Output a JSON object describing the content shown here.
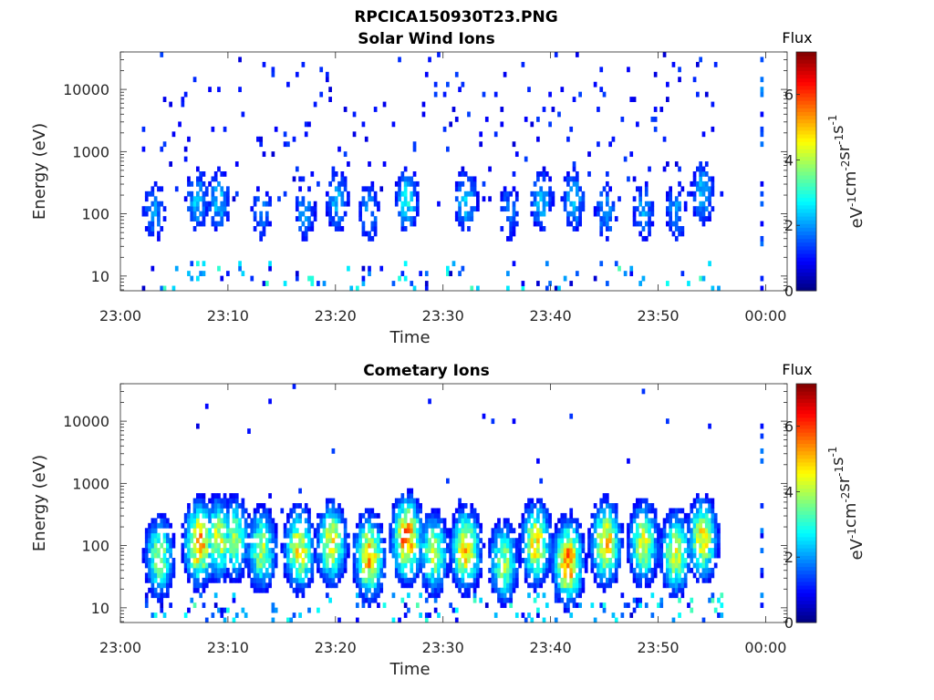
{
  "figure_title": "RPCICA150930T23.PNG",
  "colors": {
    "axis": "#262626",
    "sparse_point": "#0000cc",
    "colormap": [
      "#00007f",
      "#0000ff",
      "#007fff",
      "#00ffff",
      "#7fff7f",
      "#ffff00",
      "#ff7f00",
      "#ff0000",
      "#7f0000"
    ]
  },
  "chart_data": [
    {
      "type": "heatmap",
      "title": "Solar Wind Ions",
      "xlabel": "Time",
      "ylabel": "Energy (eV)",
      "x_ticks": [
        "23:00",
        "23:10",
        "23:20",
        "23:30",
        "23:40",
        "23:50",
        "00:00"
      ],
      "x_range_minutes": [
        0,
        62
      ],
      "y_scale": "log",
      "y_range": [
        5.8,
        40000
      ],
      "y_ticks": [
        10,
        100,
        1000,
        10000
      ],
      "y_tick_labels": [
        "10",
        "100",
        "1000",
        "10000"
      ],
      "colorbar": {
        "title": "Flux",
        "label": "eV-1cm-2sr-1s-1",
        "label_base": [
          "eV",
          "cm",
          "sr",
          "s"
        ],
        "label_exp": [
          "-1",
          "-2",
          "-1",
          "-1"
        ],
        "range": [
          0,
          7.3
        ],
        "ticks": [
          0,
          2,
          4,
          6
        ],
        "tick_labels": [
          "0",
          "2",
          "4",
          "6"
        ]
      },
      "data_extent_minutes": [
        2,
        56
      ],
      "isolated_sample_minute": 59.5,
      "bursts": [
        {
          "t": 3,
          "e": 100,
          "flux": 2.0
        },
        {
          "t": 7,
          "e": 150,
          "flux": 2.3
        },
        {
          "t": 9,
          "e": 150,
          "flux": 2.3
        },
        {
          "t": 13,
          "e": 100,
          "flux": 1.8
        },
        {
          "t": 17,
          "e": 100,
          "flux": 2.0
        },
        {
          "t": 20,
          "e": 150,
          "flux": 2.2
        },
        {
          "t": 23,
          "e": 100,
          "flux": 2.0
        },
        {
          "t": 26.5,
          "e": 150,
          "flux": 2.6
        },
        {
          "t": 32,
          "e": 150,
          "flux": 2.4
        },
        {
          "t": 36,
          "e": 100,
          "flux": 1.8
        },
        {
          "t": 39,
          "e": 150,
          "flux": 2.3
        },
        {
          "t": 42,
          "e": 150,
          "flux": 2.3
        },
        {
          "t": 45,
          "e": 100,
          "flux": 2.0
        },
        {
          "t": 48.5,
          "e": 100,
          "flux": 2.0
        },
        {
          "t": 51.5,
          "e": 100,
          "flux": 2.0
        },
        {
          "t": 54,
          "e": 200,
          "flux": 2.3
        }
      ]
    },
    {
      "type": "heatmap",
      "title": "Cometary Ions",
      "xlabel": "Time",
      "ylabel": "Energy (eV)",
      "x_ticks": [
        "23:00",
        "23:10",
        "23:20",
        "23:30",
        "23:40",
        "23:50",
        "00:00"
      ],
      "x_range_minutes": [
        0,
        62
      ],
      "y_scale": "log",
      "y_range": [
        5.8,
        40000
      ],
      "y_ticks": [
        10,
        100,
        1000,
        10000
      ],
      "y_tick_labels": [
        "10",
        "100",
        "1000",
        "10000"
      ],
      "colorbar": {
        "title": "Flux",
        "label": "eV-1cm-2sr-1s-1",
        "label_base": [
          "eV",
          "cm",
          "sr",
          "s"
        ],
        "label_exp": [
          "-1",
          "-2",
          "-1",
          "-1"
        ],
        "range": [
          0,
          7.3
        ],
        "ticks": [
          0,
          2,
          4,
          6
        ],
        "tick_labels": [
          "0",
          "2",
          "4",
          "6"
        ]
      },
      "data_extent_minutes": [
        2,
        56
      ],
      "isolated_sample_minute": 59.5,
      "bursts": [
        {
          "t": 3.5,
          "e": 60,
          "flux": 3.8
        },
        {
          "t": 7.2,
          "e": 100,
          "flux": 5.2
        },
        {
          "t": 9,
          "e": 120,
          "flux": 4.3
        },
        {
          "t": 10.5,
          "e": 120,
          "flux": 3.8
        },
        {
          "t": 13,
          "e": 80,
          "flux": 4.0
        },
        {
          "t": 16.5,
          "e": 80,
          "flux": 4.6
        },
        {
          "t": 19.5,
          "e": 100,
          "flux": 4.4
        },
        {
          "t": 23,
          "e": 60,
          "flux": 5.0
        },
        {
          "t": 26.5,
          "e": 120,
          "flux": 5.6
        },
        {
          "t": 29,
          "e": 70,
          "flux": 4.0
        },
        {
          "t": 32,
          "e": 80,
          "flux": 4.8
        },
        {
          "t": 35.5,
          "e": 50,
          "flux": 3.8
        },
        {
          "t": 38.5,
          "e": 100,
          "flux": 4.6
        },
        {
          "t": 41.5,
          "e": 50,
          "flux": 5.4
        },
        {
          "t": 45,
          "e": 100,
          "flux": 4.8
        },
        {
          "t": 48.5,
          "e": 100,
          "flux": 4.2
        },
        {
          "t": 51.5,
          "e": 70,
          "flux": 4.3
        },
        {
          "t": 54,
          "e": 120,
          "flux": 4.5
        }
      ]
    }
  ]
}
